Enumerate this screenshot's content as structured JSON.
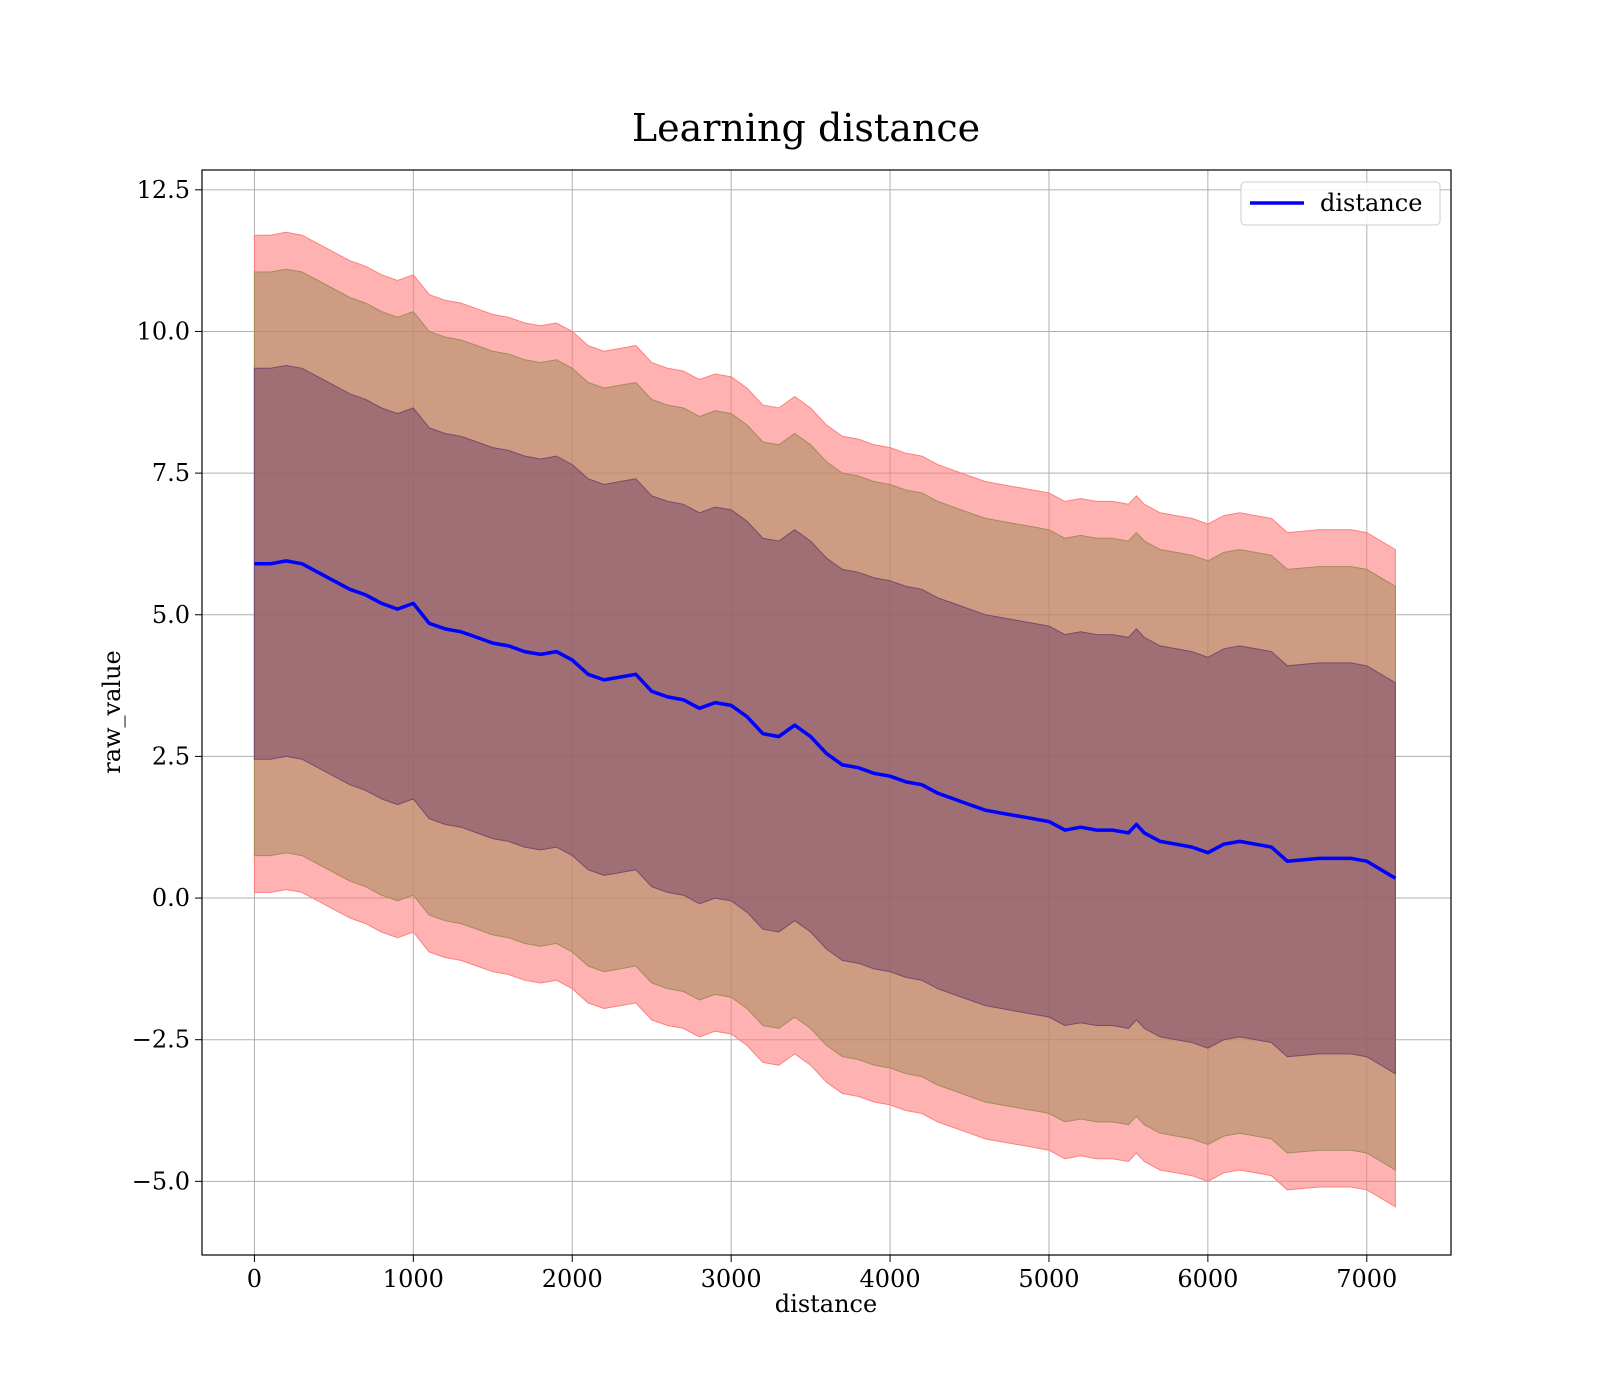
{
  "chart_data": {
    "type": "line",
    "title": "Learning distance",
    "xlabel": "distance",
    "ylabel": "raw_value",
    "xlim": [
      -330,
      7530
    ],
    "ylim": [
      -6.3,
      12.85
    ],
    "xticks": [
      0,
      1000,
      2000,
      3000,
      4000,
      5000,
      6000,
      7000
    ],
    "xtick_labels": [
      "0",
      "1000",
      "2000",
      "3000",
      "4000",
      "5000",
      "6000",
      "7000"
    ],
    "yticks": [
      -5.0,
      -2.5,
      0.0,
      2.5,
      5.0,
      7.5,
      10.0,
      12.5
    ],
    "ytick_labels": [
      "−5.0",
      "−2.5",
      "0.0",
      "2.5",
      "5.0",
      "7.5",
      "10.0",
      "12.5"
    ],
    "grid": true,
    "legend_position": "top-right",
    "colors": {
      "line": "#0000ff",
      "band_outer": "#ff7f7f",
      "band_middle": "#a48b5c",
      "band_inner": "#7a4a6a"
    },
    "series": [
      {
        "name": "distance",
        "x": [
          0,
          100,
          200,
          300,
          400,
          500,
          600,
          700,
          800,
          900,
          1000,
          1100,
          1200,
          1300,
          1400,
          1500,
          1600,
          1700,
          1800,
          1900,
          2000,
          2100,
          2200,
          2300,
          2400,
          2500,
          2600,
          2700,
          2800,
          2900,
          3000,
          3100,
          3200,
          3300,
          3400,
          3500,
          3600,
          3700,
          3800,
          3900,
          4000,
          4100,
          4200,
          4300,
          4400,
          4500,
          4600,
          4700,
          4800,
          4900,
          5000,
          5100,
          5200,
          5300,
          5400,
          5500,
          5550,
          5600,
          5700,
          5800,
          5900,
          6000,
          6100,
          6200,
          6300,
          6400,
          6500,
          6700,
          6900,
          7000,
          7180
        ],
        "y": [
          5.9,
          5.9,
          5.95,
          5.9,
          5.75,
          5.6,
          5.45,
          5.35,
          5.2,
          5.1,
          5.2,
          4.85,
          4.75,
          4.7,
          4.6,
          4.5,
          4.45,
          4.35,
          4.3,
          4.35,
          4.2,
          3.95,
          3.85,
          3.9,
          3.95,
          3.65,
          3.55,
          3.5,
          3.35,
          3.45,
          3.4,
          3.2,
          2.9,
          2.85,
          3.05,
          2.85,
          2.55,
          2.35,
          2.3,
          2.2,
          2.15,
          2.05,
          2.0,
          1.85,
          1.75,
          1.65,
          1.55,
          1.5,
          1.45,
          1.4,
          1.35,
          1.2,
          1.25,
          1.2,
          1.2,
          1.15,
          1.3,
          1.15,
          1.0,
          0.95,
          0.9,
          0.8,
          0.95,
          1.0,
          0.95,
          0.9,
          0.65,
          0.7,
          0.7,
          0.65,
          0.35
        ]
      }
    ],
    "bands": [
      {
        "offset_upper": 5.8,
        "offset_lower": 5.8,
        "color": "#ff7f7f"
      },
      {
        "offset_upper": 5.15,
        "offset_lower": 5.15,
        "color": "#a48b5c"
      },
      {
        "offset_upper": 3.45,
        "offset_lower": 3.45,
        "color": "#7a4a6a"
      }
    ]
  }
}
